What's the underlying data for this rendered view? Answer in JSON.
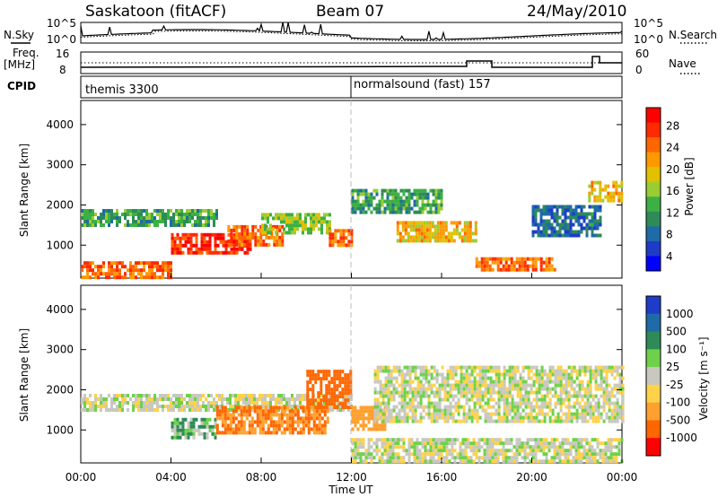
{
  "header": {
    "radar": "Saskatoon (fitACF)",
    "beam": "Beam 07",
    "date": "24/May/2010"
  },
  "top_panels": {
    "nsky_label": "N.Sky",
    "nsearch_label": "N.Search",
    "noise_ticks_left": [
      "10^5",
      "10^0"
    ],
    "noise_ticks_right": [
      "10^5",
      "10^0"
    ],
    "freq_label_line1": "Freq.",
    "freq_label_line2": "[MHz]",
    "freq_ticks": [
      "16",
      "8"
    ],
    "nave_label": "Nave",
    "nave_ticks": [
      "60",
      "0"
    ],
    "cpid_label": "CPID",
    "cpid_entries": [
      {
        "name": "themis 3300",
        "start": "00:00"
      },
      {
        "name": "normalsound (fast) 157",
        "start": "12:00"
      }
    ]
  },
  "power_colorbar": {
    "title": "Power [dB]",
    "ticks": [
      "28",
      "24",
      "20",
      "16",
      "12",
      "8",
      "4"
    ],
    "colors": [
      "#ff0000",
      "#ff2a00",
      "#ff6600",
      "#ff9900",
      "#e0c000",
      "#9acd32",
      "#3cb043",
      "#2e8b57",
      "#1e6ba8",
      "#1e3cc8",
      "#0000ff"
    ]
  },
  "velocity_colorbar": {
    "title": "Velocity [m s⁻¹]",
    "ticks": [
      "1000",
      "500",
      "100",
      "25",
      "-25",
      "-100",
      "-500",
      "-1000"
    ],
    "colors": [
      "#1e3cc8",
      "#1e6ba8",
      "#2e8b57",
      "#6fd14a",
      "#c8c8c0",
      "#ffd24a",
      "#ffa030",
      "#ff6600",
      "#ff0000"
    ]
  },
  "chart_data": [
    {
      "type": "heatmap",
      "title": "Power",
      "xlabel": "",
      "ylabel": "Slant Range [km]",
      "xlim": [
        "00:00",
        "24:00"
      ],
      "ylim": [
        180,
        4600
      ],
      "yticks": [
        "4000",
        "3000",
        "2000",
        "1000"
      ],
      "colorbar_ticks_db": [
        28,
        24,
        20,
        16,
        12,
        8,
        4
      ],
      "features": [
        {
          "t0": 0.0,
          "t1": 6.0,
          "r0": 1500,
          "r1": 1900,
          "level": 12
        },
        {
          "t0": 4.0,
          "t1": 7.5,
          "r0": 800,
          "r1": 1300,
          "level": 28
        },
        {
          "t0": 6.5,
          "t1": 9.0,
          "r0": 1000,
          "r1": 1500,
          "level": 24
        },
        {
          "t0": 8.0,
          "t1": 11.0,
          "r0": 1300,
          "r1": 1800,
          "level": 16
        },
        {
          "t0": 0.0,
          "t1": 4.0,
          "r0": 200,
          "r1": 600,
          "level": 24
        },
        {
          "t0": 11.0,
          "t1": 12.0,
          "r0": 1000,
          "r1": 1400,
          "level": 24
        },
        {
          "t0": 12.0,
          "t1": 16.0,
          "r0": 1800,
          "r1": 2400,
          "level": 12
        },
        {
          "t0": 14.0,
          "t1": 17.5,
          "r0": 1100,
          "r1": 1600,
          "level": 20
        },
        {
          "t0": 17.5,
          "t1": 21.0,
          "r0": 400,
          "r1": 700,
          "level": 24
        },
        {
          "t0": 20.0,
          "t1": 23.0,
          "r0": 1200,
          "r1": 2000,
          "level": 8
        },
        {
          "t0": 22.5,
          "t1": 24.0,
          "r0": 2100,
          "r1": 2600,
          "level": 20
        }
      ]
    },
    {
      "type": "heatmap",
      "title": "Velocity",
      "xlabel": "Time UT",
      "ylabel": "Slant Range [km]",
      "xlim": [
        "00:00",
        "24:00"
      ],
      "ylim": [
        180,
        4600
      ],
      "xticks": [
        "00:00",
        "04:00",
        "08:00",
        "12:00",
        "16:00",
        "20:00",
        "00:00"
      ],
      "yticks": [
        "4000",
        "3000",
        "2000",
        "1000"
      ],
      "colorbar_ticks": [
        1000,
        500,
        100,
        25,
        -25,
        -100,
        -500,
        -1000
      ],
      "features": [
        {
          "t0": 0.0,
          "t1": 12.0,
          "r0": 1500,
          "r1": 1900,
          "velocity": 0
        },
        {
          "t0": 4.0,
          "t1": 6.0,
          "r0": 800,
          "r1": 1300,
          "velocity": 50
        },
        {
          "t0": 6.0,
          "t1": 11.0,
          "r0": 900,
          "r1": 1600,
          "velocity": -300
        },
        {
          "t0": 10.0,
          "t1": 12.0,
          "r0": 1600,
          "r1": 2500,
          "velocity": -400
        },
        {
          "t0": 12.0,
          "t1": 13.5,
          "r0": 1000,
          "r1": 1600,
          "velocity": -200
        },
        {
          "t0": 12.0,
          "t1": 24.0,
          "r0": 200,
          "r1": 800,
          "velocity": 0
        },
        {
          "t0": 13.0,
          "t1": 24.0,
          "r0": 1200,
          "r1": 2600,
          "velocity": 0
        }
      ]
    }
  ]
}
